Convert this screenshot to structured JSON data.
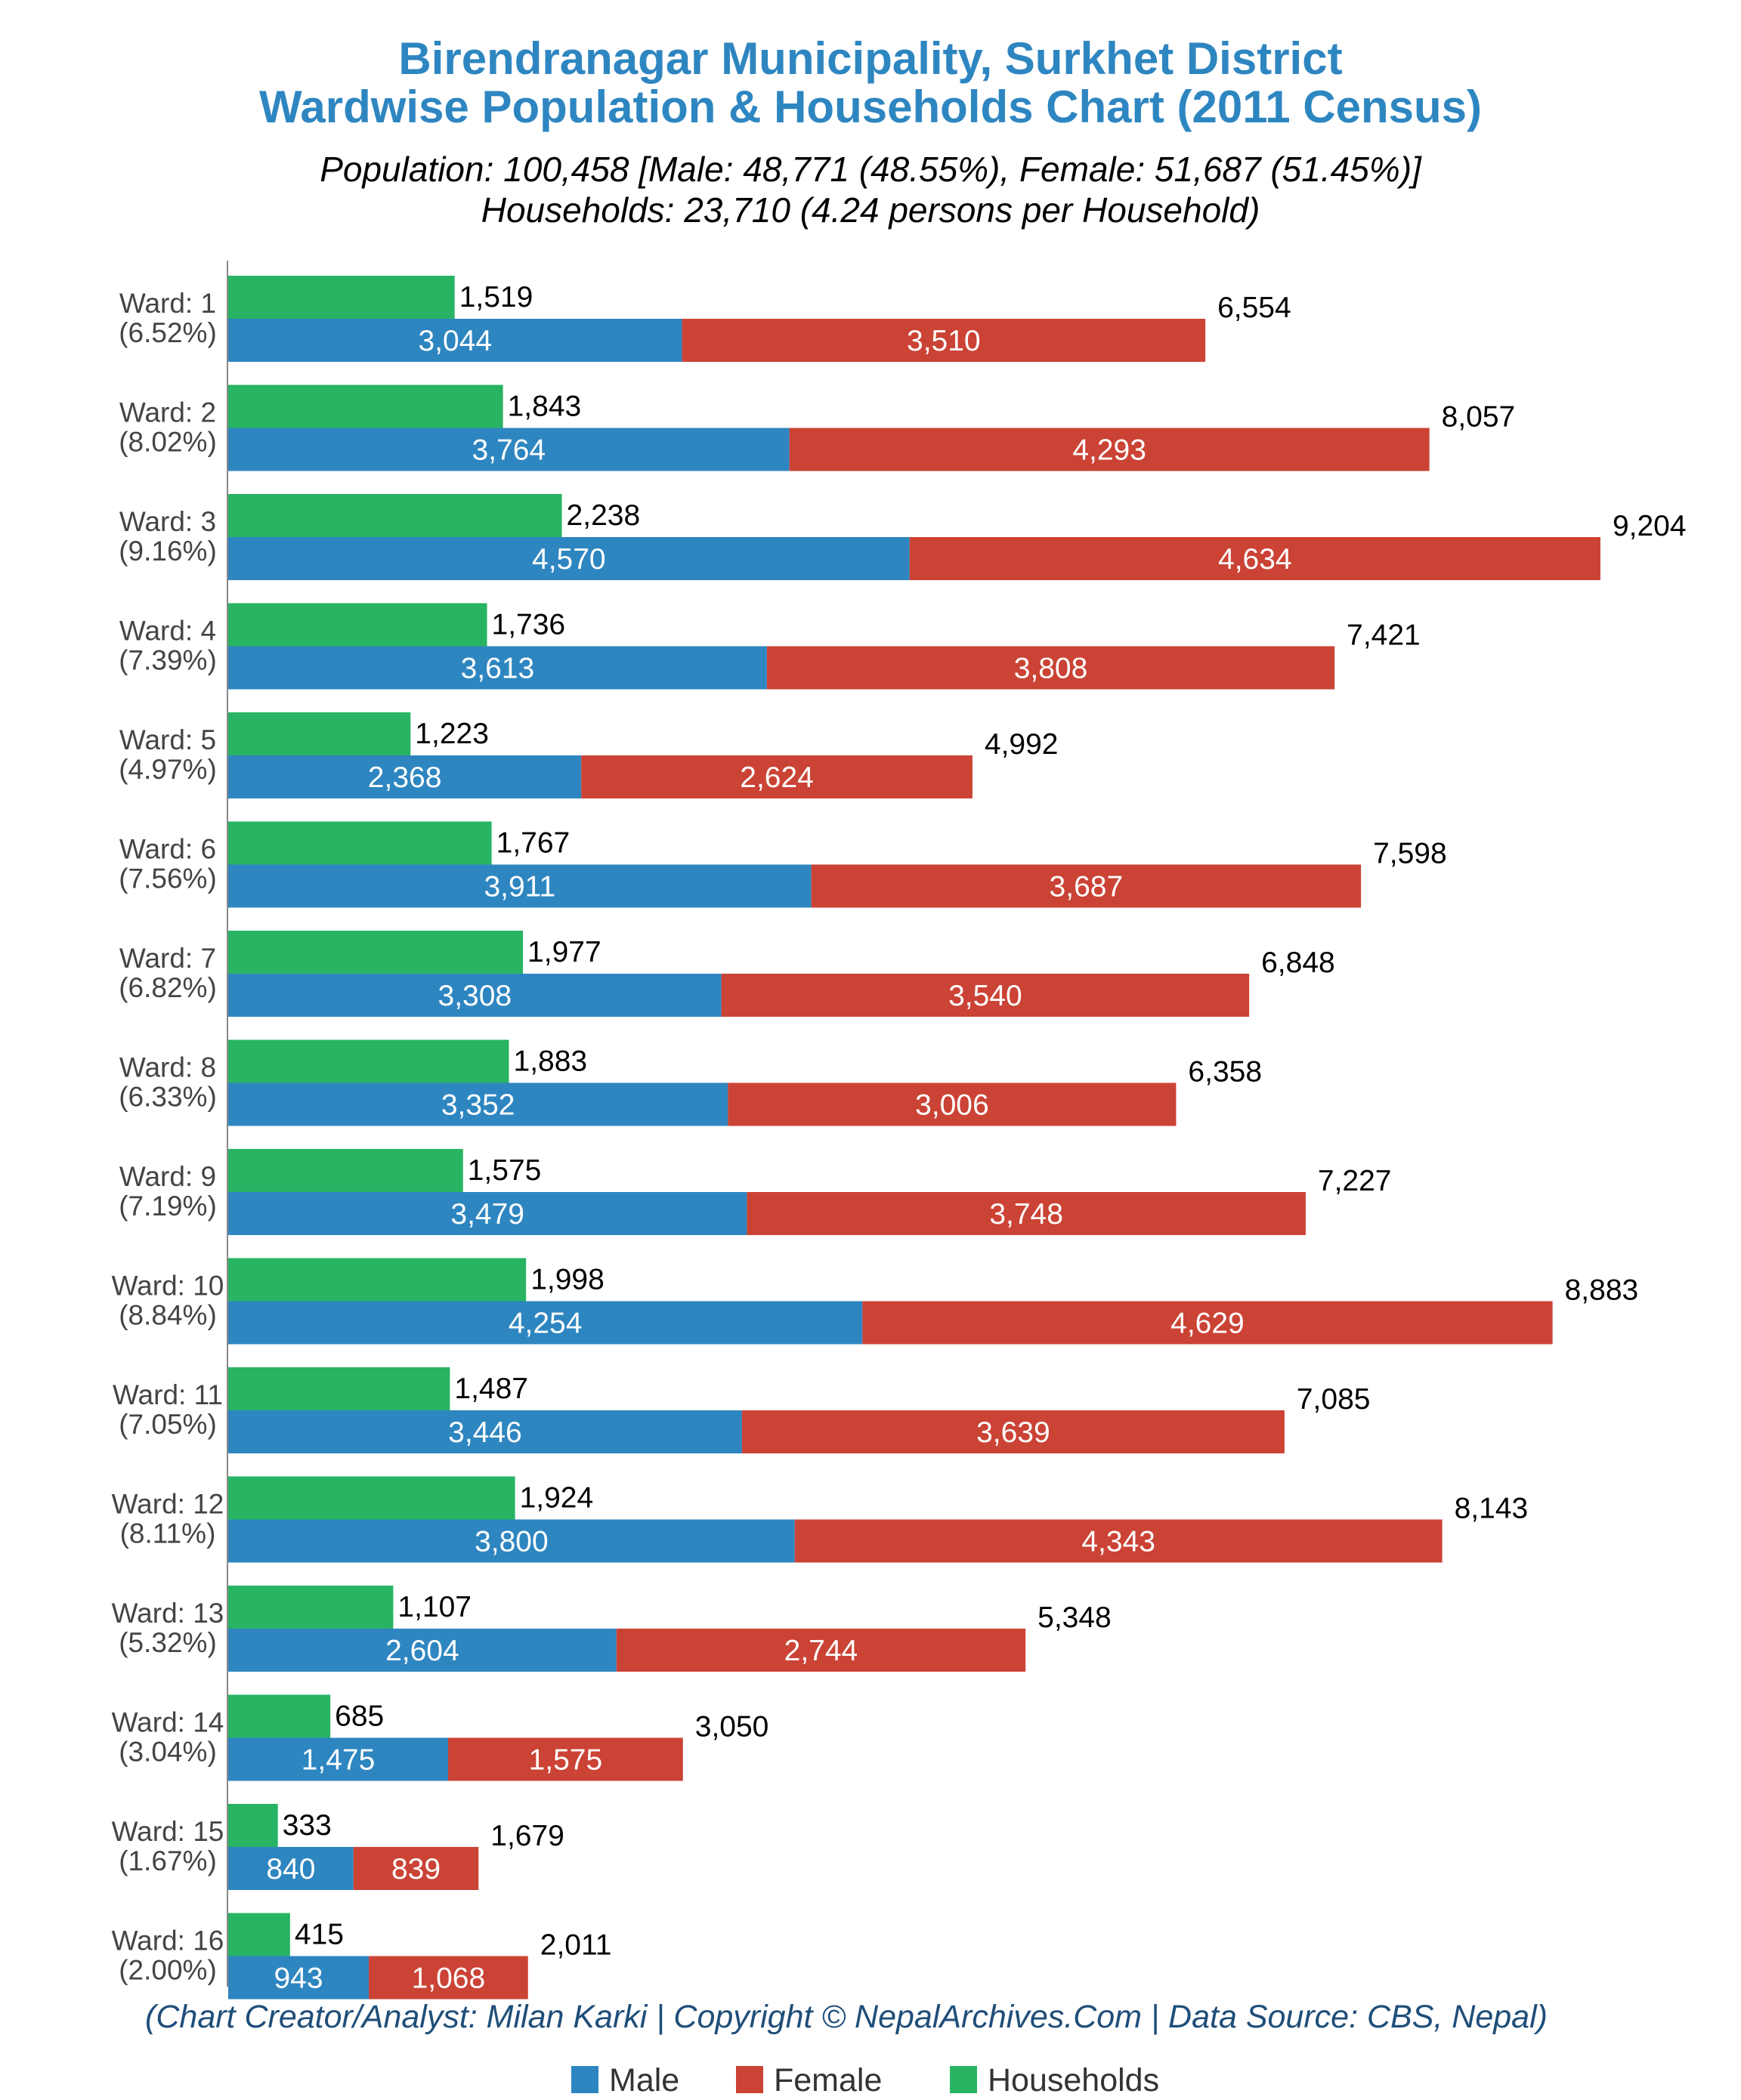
{
  "title_line1": "Birendranagar Municipality, Surkhet District",
  "title_line2": "Wardwise Population & Households Chart (2011 Census)",
  "subtitle_line1": "Population: 100,458 [Male: 48,771 (48.55%), Female: 51,687 (51.45%)]",
  "subtitle_line2": "Households: 23,710 (4.24 persons per Household)",
  "footer": "(Chart Creator/Analyst: Milan Karki | Copyright © NepalArchives.Com | Data Source: CBS, Nepal)",
  "colors": {
    "title": "#2e86c1",
    "footer": "#1f4e79",
    "male": "#2e86c1",
    "female": "#cb4335",
    "households": "#28b463"
  },
  "legend": [
    {
      "key": "male",
      "label": "Male"
    },
    {
      "key": "female",
      "label": "Female"
    },
    {
      "key": "households",
      "label": "Households"
    }
  ],
  "chart_data": {
    "type": "bar",
    "orientation": "horizontal",
    "stacked_series": [
      "Male",
      "Female"
    ],
    "xlim": [
      0,
      9500
    ],
    "grid": false,
    "legend_position": "bottom",
    "categories": [
      "Ward: 1",
      "Ward: 2",
      "Ward: 3",
      "Ward: 4",
      "Ward: 5",
      "Ward: 6",
      "Ward: 7",
      "Ward: 8",
      "Ward: 9",
      "Ward: 10",
      "Ward: 11",
      "Ward: 12",
      "Ward: 13",
      "Ward: 14",
      "Ward: 15",
      "Ward: 16"
    ],
    "category_shares": [
      "(6.52%)",
      "(8.02%)",
      "(9.16%)",
      "(7.39%)",
      "(4.97%)",
      "(7.56%)",
      "(6.82%)",
      "(6.33%)",
      "(7.19%)",
      "(8.84%)",
      "(7.05%)",
      "(8.11%)",
      "(5.32%)",
      "(3.04%)",
      "(1.67%)",
      "(2.00%)"
    ],
    "series": [
      {
        "name": "Male",
        "values": [
          3044,
          3764,
          4570,
          3613,
          2368,
          3911,
          3308,
          3352,
          3479,
          4254,
          3446,
          3800,
          2604,
          1475,
          840,
          943
        ]
      },
      {
        "name": "Female",
        "values": [
          3510,
          4293,
          4634,
          3808,
          2624,
          3687,
          3540,
          3006,
          3748,
          4629,
          3639,
          4343,
          2744,
          1575,
          839,
          1068
        ]
      },
      {
        "name": "Households",
        "values": [
          1519,
          1843,
          2238,
          1736,
          1223,
          1767,
          1977,
          1883,
          1575,
          1998,
          1487,
          1924,
          1107,
          685,
          333,
          415
        ]
      }
    ],
    "totals": [
      6554,
      8057,
      9204,
      7421,
      4992,
      7598,
      6848,
      6358,
      7227,
      8883,
      7085,
      8143,
      5348,
      3050,
      1679,
      2011
    ]
  }
}
